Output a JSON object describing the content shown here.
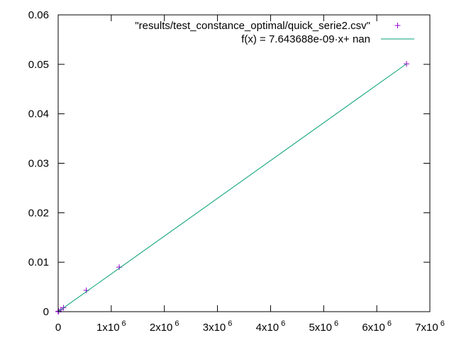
{
  "chart_data": {
    "type": "scatter",
    "xlim": [
      0,
      7000000
    ],
    "ylim": [
      0,
      0.06
    ],
    "x_ticks": [
      {
        "value": 0,
        "label": "0",
        "exp": ""
      },
      {
        "value": 1000000,
        "label": "1x10",
        "exp": "6"
      },
      {
        "value": 2000000,
        "label": "2x10",
        "exp": "6"
      },
      {
        "value": 3000000,
        "label": "3x10",
        "exp": "6"
      },
      {
        "value": 4000000,
        "label": "4x10",
        "exp": "6"
      },
      {
        "value": 5000000,
        "label": "5x10",
        "exp": "6"
      },
      {
        "value": 6000000,
        "label": "6x10",
        "exp": "6"
      },
      {
        "value": 7000000,
        "label": "7x10",
        "exp": "6"
      }
    ],
    "y_ticks": [
      {
        "value": 0,
        "label": "0"
      },
      {
        "value": 0.01,
        "label": "0.01"
      },
      {
        "value": 0.02,
        "label": "0.02"
      },
      {
        "value": 0.03,
        "label": "0.03"
      },
      {
        "value": 0.04,
        "label": "0.04"
      },
      {
        "value": 0.05,
        "label": "0.05"
      },
      {
        "value": 0.06,
        "label": "0.06"
      }
    ],
    "grid": false,
    "legend_position": "top-right",
    "series": [
      {
        "name": "\"results/test_constance_optimal/quick_serie2.csv\"",
        "kind": "points",
        "marker": "+",
        "color": "#9400d3",
        "points": [
          {
            "x": 0,
            "y": 0
          },
          {
            "x": 10000,
            "y": 0.0001
          },
          {
            "x": 50000,
            "y": 0.0004
          },
          {
            "x": 100000,
            "y": 0.0008
          },
          {
            "x": 530000,
            "y": 0.0043
          },
          {
            "x": 1150000,
            "y": 0.009
          },
          {
            "x": 6560000,
            "y": 0.0501
          }
        ]
      },
      {
        "name": "f(x) = 7.643688e-09·x+ nan",
        "kind": "line",
        "color": "#009e73",
        "points": [
          {
            "x": 0,
            "y": 0
          },
          {
            "x": 6560000,
            "y": 0.0501
          }
        ]
      }
    ]
  },
  "colors": {
    "points": "#9400d3",
    "fit_line": "#009e73",
    "axes": "#000000"
  }
}
